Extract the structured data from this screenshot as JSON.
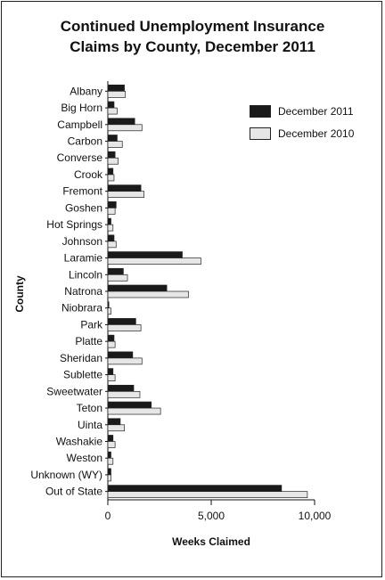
{
  "chart_data": {
    "type": "bar",
    "orientation": "horizontal",
    "title_line1": "Continued Unemployment Insurance",
    "title_line2": "Claims by County, December 2011",
    "xlabel": "Weeks Claimed",
    "ylabel": "County",
    "xlim": [
      0,
      10000
    ],
    "x_ticks": [
      0,
      5000,
      10000
    ],
    "x_tick_labels": [
      "0",
      "5,000",
      "10,000"
    ],
    "grid": false,
    "legend_position": "top-right",
    "categories": [
      "Albany",
      "Big Horn",
      "Campbell",
      "Carbon",
      "Converse",
      "Crook",
      "Fremont",
      "Goshen",
      "Hot Springs",
      "Johnson",
      "Laramie",
      "Lincoln",
      "Natrona",
      "Niobrara",
      "Park",
      "Platte",
      "Sheridan",
      "Sublette",
      "Sweetwater",
      "Teton",
      "Uinta",
      "Washakie",
      "Weston",
      "Unknown (WY)",
      "Out of State"
    ],
    "series": [
      {
        "name": "December 2011",
        "color": "#1a1a1a",
        "values": [
          800,
          300,
          1300,
          450,
          350,
          250,
          1600,
          400,
          150,
          300,
          3600,
          750,
          2850,
          50,
          1350,
          300,
          1200,
          250,
          1250,
          2100,
          600,
          250,
          150,
          150,
          8400
        ]
      },
      {
        "name": "December 2010",
        "color": "#e6e6e6",
        "values": [
          850,
          450,
          1650,
          700,
          500,
          300,
          1750,
          350,
          250,
          400,
          4500,
          950,
          3900,
          150,
          1600,
          350,
          1650,
          350,
          1550,
          2550,
          800,
          350,
          250,
          150,
          9650
        ]
      }
    ]
  }
}
